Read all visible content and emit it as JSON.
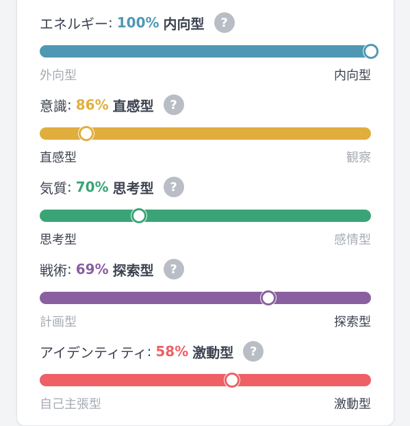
{
  "help_glyph": "?",
  "traits": [
    {
      "label": "エネルギー",
      "colon": ":",
      "percent": "100%",
      "type": "内向型",
      "color": "#4e98b4",
      "value": 1.0,
      "left_pole": "外向型",
      "right_pole": "内向型",
      "active_side": "right"
    },
    {
      "label": "意識",
      "colon": ":",
      "percent": "86%",
      "type": "直感型",
      "color": "#e0ae3d",
      "value": 0.14,
      "left_pole": "直感型",
      "right_pole": "観察",
      "active_side": "left"
    },
    {
      "label": "気質",
      "colon": ":",
      "percent": "70%",
      "type": "思考型",
      "color": "#3aa477",
      "value": 0.3,
      "left_pole": "思考型",
      "right_pole": "感情型",
      "active_side": "left"
    },
    {
      "label": "戦術",
      "colon": ":",
      "percent": "69%",
      "type": "探索型",
      "color": "#8a5fa0",
      "value": 0.69,
      "left_pole": "計画型",
      "right_pole": "探索型",
      "active_side": "right"
    },
    {
      "label": "アイデンティティ",
      "colon": ":",
      "percent": "58%",
      "type": "激動型",
      "color": "#ee5f66",
      "value": 0.58,
      "left_pole": "自己主張型",
      "right_pole": "激動型",
      "active_side": "right"
    }
  ]
}
